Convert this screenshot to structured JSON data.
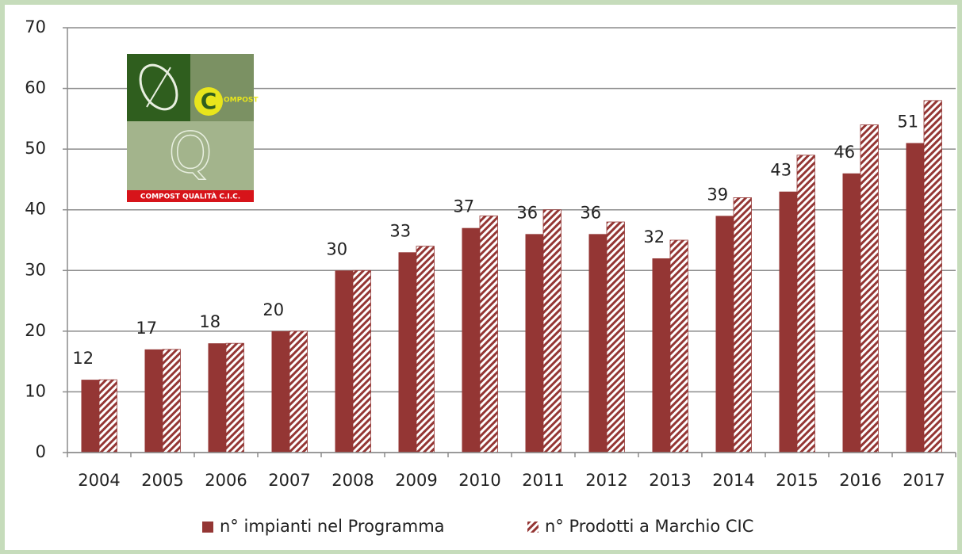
{
  "chart_data": {
    "type": "bar",
    "categories": [
      "2004",
      "2005",
      "2006",
      "2007",
      "2008",
      "2009",
      "2010",
      "2011",
      "2012",
      "2013",
      "2014",
      "2015",
      "2016",
      "2017"
    ],
    "series": [
      {
        "name": "n° impianti nel Programma",
        "color": "#943634",
        "hatch": false,
        "labels": true,
        "values": [
          12,
          17,
          18,
          20,
          30,
          33,
          37,
          36,
          36,
          32,
          39,
          43,
          46,
          51
        ]
      },
      {
        "name": "n° Prodotti a Marchio CIC",
        "color": "#943634",
        "hatch": true,
        "labels": false,
        "values": [
          12,
          17,
          18,
          20,
          30,
          34,
          39,
          40,
          38,
          35,
          42,
          49,
          54,
          58
        ]
      }
    ],
    "ylim": [
      0,
      70
    ],
    "yticks": [
      0,
      10,
      20,
      30,
      40,
      50,
      60,
      70
    ],
    "grid": true,
    "legend": "bottom"
  },
  "logo": {
    "initial": "C",
    "word": "OMPOST",
    "letter": "Q",
    "caption": "COMPOST QUALITÀ C.I.C."
  }
}
